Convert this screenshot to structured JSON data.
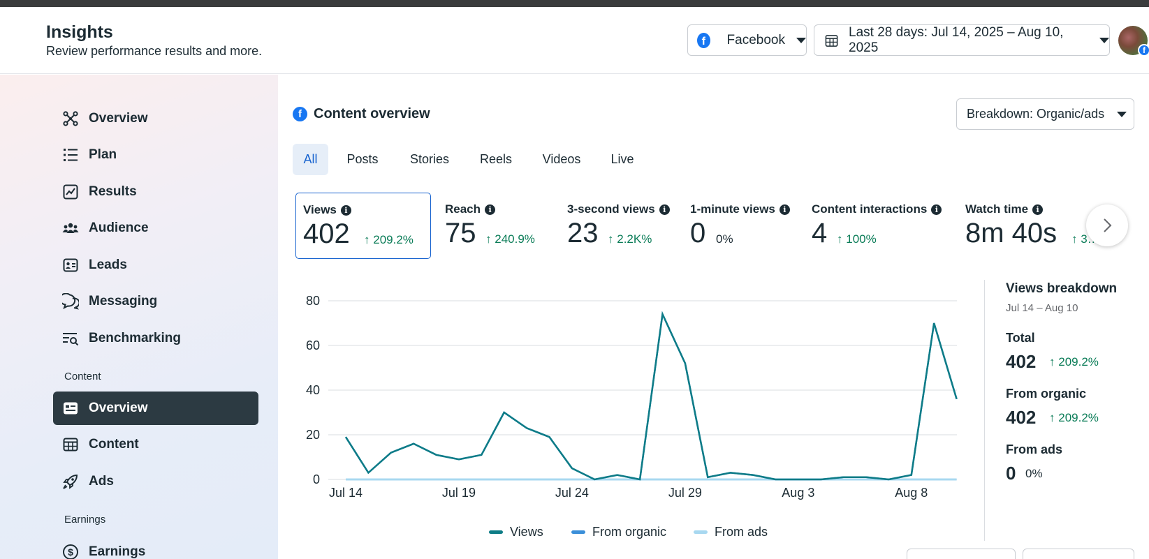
{
  "header": {
    "title": "Insights",
    "subtitle": "Review performance results and more.",
    "platform_label": "Facebook",
    "date_range_label": "Last 28 days: Jul 14, 2025 – Aug 10, 2025"
  },
  "sidebar": {
    "items": [
      {
        "label": "Overview",
        "icon": "overview-icon"
      },
      {
        "label": "Plan",
        "icon": "plan-icon"
      },
      {
        "label": "Results",
        "icon": "results-icon"
      },
      {
        "label": "Audience",
        "icon": "audience-icon"
      },
      {
        "label": "Leads",
        "icon": "leads-icon"
      },
      {
        "label": "Messaging",
        "icon": "messaging-icon"
      },
      {
        "label": "Benchmarking",
        "icon": "benchmarking-icon"
      }
    ],
    "content_section": "Content",
    "content_items": [
      {
        "label": "Overview",
        "icon": "content-overview-icon",
        "active": true
      },
      {
        "label": "Content",
        "icon": "content-table-icon"
      },
      {
        "label": "Ads",
        "icon": "rocket-icon"
      }
    ],
    "earnings_section": "Earnings",
    "earnings_items": [
      {
        "label": "Earnings",
        "icon": "dollar-icon"
      }
    ]
  },
  "content_overview": {
    "title": "Content overview",
    "breakdown_label": "Breakdown: Organic/ads",
    "tabs": [
      "All",
      "Posts",
      "Stories",
      "Reels",
      "Videos",
      "Live"
    ],
    "active_tab": "All",
    "metrics": [
      {
        "label": "Views",
        "value": "402",
        "change": "209.2%",
        "trend": "up",
        "selected": true
      },
      {
        "label": "Reach",
        "value": "75",
        "change": "240.9%",
        "trend": "up"
      },
      {
        "label": "3-second views",
        "value": "23",
        "change": "2.2K%",
        "trend": "up"
      },
      {
        "label": "1-minute views",
        "value": "0",
        "change": "0%",
        "trend": "none"
      },
      {
        "label": "Content interactions",
        "value": "4",
        "change": "100%",
        "trend": "up"
      },
      {
        "label": "Watch time",
        "value": "8m 40s",
        "change": "3…%",
        "trend": "up"
      }
    ]
  },
  "breakdown_panel": {
    "title": "Views breakdown",
    "range": "Jul 14 – Aug 10",
    "total_label": "Total",
    "total_value": "402",
    "total_change": "209.2%",
    "organic_label": "From organic",
    "organic_value": "402",
    "organic_change": "209.2%",
    "ads_label": "From ads",
    "ads_value": "0",
    "ads_change": "0%"
  },
  "colors": {
    "views": "#0e7c86",
    "organic": "#3b8fd9",
    "ads": "#a8d8f0",
    "positive": "#0a7c57",
    "accent": "#1763cf"
  },
  "chart_data": {
    "type": "line",
    "x": [
      "Jul 14",
      "Jul 15",
      "Jul 16",
      "Jul 17",
      "Jul 18",
      "Jul 19",
      "Jul 20",
      "Jul 21",
      "Jul 22",
      "Jul 23",
      "Jul 24",
      "Jul 25",
      "Jul 26",
      "Jul 27",
      "Jul 28",
      "Jul 29",
      "Jul 30",
      "Jul 31",
      "Aug 1",
      "Aug 2",
      "Aug 3",
      "Aug 4",
      "Aug 5",
      "Aug 6",
      "Aug 7",
      "Aug 8",
      "Aug 9",
      "Aug 10"
    ],
    "x_ticks": [
      "Jul 14",
      "Jul 19",
      "Jul 24",
      "Jul 29",
      "Aug 3",
      "Aug 8"
    ],
    "y_ticks": [
      0,
      20,
      40,
      60,
      80
    ],
    "ylim": [
      0,
      80
    ],
    "grid": true,
    "legend_position": "bottom",
    "series": [
      {
        "name": "Views",
        "values": [
          19,
          3,
          12,
          16,
          11,
          9,
          11,
          30,
          23,
          19,
          5,
          0,
          2,
          0,
          74,
          52,
          1,
          3,
          2,
          0,
          0,
          0,
          1,
          1,
          0,
          2,
          70,
          36
        ]
      },
      {
        "name": "From organic",
        "values": [
          19,
          3,
          12,
          16,
          11,
          9,
          11,
          30,
          23,
          19,
          5,
          0,
          2,
          0,
          74,
          52,
          1,
          3,
          2,
          0,
          0,
          0,
          1,
          1,
          0,
          2,
          70,
          36
        ]
      },
      {
        "name": "From ads",
        "values": [
          0,
          0,
          0,
          0,
          0,
          0,
          0,
          0,
          0,
          0,
          0,
          0,
          0,
          0,
          0,
          0,
          0,
          0,
          0,
          0,
          0,
          0,
          0,
          0,
          0,
          0,
          0,
          0
        ]
      }
    ]
  }
}
